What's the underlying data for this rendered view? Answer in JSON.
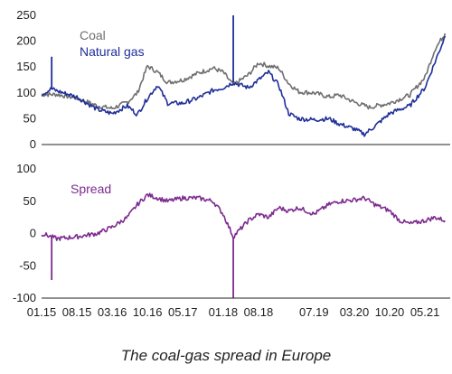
{
  "caption": "The coal-gas spread in Europe",
  "chart_data": [
    {
      "type": "line",
      "ylim": [
        0,
        250
      ],
      "yticks": [
        0,
        50,
        100,
        150,
        200,
        250
      ],
      "series": [
        {
          "name": "Coal",
          "color": "#6f6f6f",
          "points": [
            [
              "01.15",
              97
            ],
            [
              "04.15",
              97
            ],
            [
              "08.15",
              90
            ],
            [
              "12.15",
              75
            ],
            [
              "03.16",
              70
            ],
            [
              "06.16",
              82
            ],
            [
              "08.16",
              100
            ],
            [
              "10.16",
              152
            ],
            [
              "12.16",
              140
            ],
            [
              "02.17",
              120
            ],
            [
              "05.17",
              125
            ],
            [
              "08.17",
              138
            ],
            [
              "11.17",
              148
            ],
            [
              "01.18",
              140
            ],
            [
              "03.18",
              115
            ],
            [
              "06.18",
              135
            ],
            [
              "08.18",
              158
            ],
            [
              "10.18",
              152
            ],
            [
              "12.18",
              148
            ],
            [
              "02.19",
              118
            ],
            [
              "04.19",
              102
            ],
            [
              "07.19",
              100
            ],
            [
              "10.19",
              92
            ],
            [
              "12.19",
              96
            ],
            [
              "03.20",
              82
            ],
            [
              "06.20",
              72
            ],
            [
              "10.20",
              80
            ],
            [
              "12.20",
              88
            ],
            [
              "02.21",
              96
            ],
            [
              "05.21",
              130
            ],
            [
              "07.21",
              185
            ],
            [
              "09.21",
              215
            ]
          ]
        },
        {
          "name": "Natural gas",
          "color": "#1f2f99",
          "points": [
            [
              "01.15",
              97
            ],
            [
              "03.15",
              108
            ],
            [
              "04.15",
              104
            ],
            [
              "08.15",
              92
            ],
            [
              "12.15",
              68
            ],
            [
              "03.16",
              60
            ],
            [
              "06.16",
              75
            ],
            [
              "08.16",
              58
            ],
            [
              "10.16",
              90
            ],
            [
              "12.16",
              115
            ],
            [
              "02.17",
              80
            ],
            [
              "05.17",
              80
            ],
            [
              "08.17",
              90
            ],
            [
              "11.17",
              105
            ],
            [
              "01.18",
              110
            ],
            [
              "03.18",
              120
            ],
            [
              "06.18",
              110
            ],
            [
              "08.18",
              125
            ],
            [
              "10.18",
              140
            ],
            [
              "12.18",
              115
            ],
            [
              "02.19",
              60
            ],
            [
              "04.19",
              50
            ],
            [
              "07.19",
              48
            ],
            [
              "10.19",
              50
            ],
            [
              "12.19",
              40
            ],
            [
              "03.20",
              30
            ],
            [
              "05.20",
              20
            ],
            [
              "07.20",
              35
            ],
            [
              "10.20",
              60
            ],
            [
              "12.20",
              68
            ],
            [
              "02.21",
              75
            ],
            [
              "05.21",
              110
            ],
            [
              "07.21",
              160
            ],
            [
              "09.21",
              210
            ]
          ],
          "spikes": [
            [
              "03.15",
              170
            ],
            [
              "03.18",
              250
            ]
          ]
        }
      ]
    },
    {
      "type": "line",
      "ylim": [
        -100,
        100
      ],
      "yticks": [
        -100,
        -50,
        0,
        50,
        100
      ],
      "series": [
        {
          "name": "Spread",
          "color": "#7d2b8f",
          "points": [
            [
              "01.15",
              0
            ],
            [
              "03.15",
              -5
            ],
            [
              "04.15",
              -8
            ],
            [
              "08.15",
              -5
            ],
            [
              "12.15",
              0
            ],
            [
              "03.16",
              10
            ],
            [
              "06.16",
              25
            ],
            [
              "08.16",
              45
            ],
            [
              "10.16",
              60
            ],
            [
              "12.16",
              55
            ],
            [
              "02.17",
              50
            ],
            [
              "05.17",
              55
            ],
            [
              "08.17",
              55
            ],
            [
              "11.17",
              50
            ],
            [
              "01.18",
              30
            ],
            [
              "03.18",
              -5
            ],
            [
              "06.18",
              20
            ],
            [
              "08.18",
              30
            ],
            [
              "10.18",
              25
            ],
            [
              "12.18",
              40
            ],
            [
              "02.19",
              35
            ],
            [
              "04.19",
              40
            ],
            [
              "07.19",
              30
            ],
            [
              "10.19",
              45
            ],
            [
              "12.19",
              50
            ],
            [
              "03.20",
              52
            ],
            [
              "05.20",
              55
            ],
            [
              "07.20",
              45
            ],
            [
              "10.20",
              35
            ],
            [
              "12.20",
              20
            ],
            [
              "02.21",
              15
            ],
            [
              "05.21",
              20
            ],
            [
              "07.21",
              25
            ],
            [
              "09.21",
              20
            ]
          ],
          "spikes": [
            [
              "03.15",
              -72
            ],
            [
              "03.18",
              -100
            ]
          ]
        }
      ]
    }
  ],
  "x_axis": {
    "range": [
      "01.15",
      "10.21"
    ],
    "ticks": [
      "01.15",
      "08.15",
      "03.16",
      "10.16",
      "05.17",
      "01.18",
      "08.18",
      "07.19",
      "03.20",
      "10.20",
      "05.21"
    ]
  }
}
